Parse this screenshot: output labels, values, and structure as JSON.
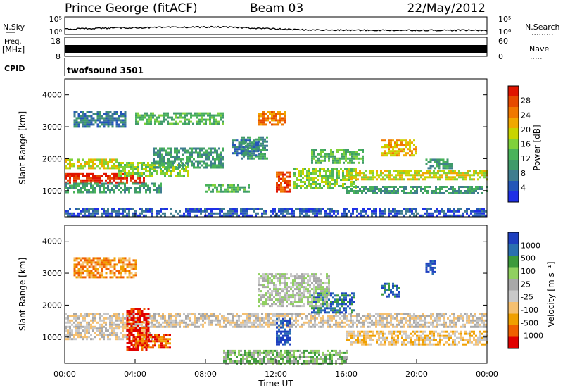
{
  "header": {
    "station": "Prince George (fitACF)",
    "beam": "Beam 03",
    "date": "22/May/2012"
  },
  "nsky_panel": {
    "left_label": "N.Sky",
    "right_label": "N.Search",
    "left_top_tick": "10^5",
    "left_bottom_tick": "10^0",
    "right_top_tick": "10^5",
    "right_bottom_tick": "10^0"
  },
  "freq_panel": {
    "left_label_1": "Freq.",
    "left_label_2": "[MHz]",
    "right_label": "Nave",
    "left_ticks": [
      "18",
      "8"
    ],
    "right_ticks": [
      "60",
      "0"
    ]
  },
  "cpid_panel": {
    "label": "CPID",
    "program": "twofsound 3501"
  },
  "colors": {
    "power": [
      "#1e2fe6",
      "#2456b8",
      "#3f7d8f",
      "#3f9a6a",
      "#49b35a",
      "#7fd13a",
      "#c8d400",
      "#f0a800",
      "#f07800",
      "#e64a00",
      "#e01400"
    ],
    "velocity": [
      "#e00000",
      "#f06000",
      "#f0a000",
      "#f5c070",
      "#c8c8c8",
      "#a8a8a8",
      "#90d060",
      "#3c9a3c",
      "#2a70b0",
      "#1e40c0"
    ]
  },
  "chart_data": [
    {
      "type": "heatmap",
      "name": "power",
      "ylabel": "Slant Range [km]",
      "ylim": [
        180,
        4500
      ],
      "yticks": [
        "1000",
        "2000",
        "3000",
        "4000"
      ],
      "xlim_hours": [
        0,
        24
      ],
      "colorbar_label": "Power [dB]",
      "colorbar_ticks": [
        "4",
        "8",
        "12",
        "16",
        "20",
        "24",
        "28"
      ],
      "bands": [
        {
          "x": [
            0.0,
            4.5
          ],
          "y": [
            1250,
            1550
          ],
          "level": 10
        },
        {
          "x": [
            0.0,
            3.0
          ],
          "y": [
            1700,
            2000
          ],
          "level": 6
        },
        {
          "x": [
            0.0,
            5.5
          ],
          "y": [
            950,
            1250
          ],
          "level": 3
        },
        {
          "x": [
            3.0,
            7.0
          ],
          "y": [
            1500,
            1900
          ],
          "level": 5
        },
        {
          "x": [
            5.0,
            9.0
          ],
          "y": [
            1750,
            2350
          ],
          "level": 3
        },
        {
          "x": [
            8.0,
            10.5
          ],
          "y": [
            1000,
            1200
          ],
          "level": 4
        },
        {
          "x": [
            10.0,
            11.5
          ],
          "y": [
            2000,
            2700
          ],
          "level": 3
        },
        {
          "x": [
            11.0,
            12.5
          ],
          "y": [
            3100,
            3500
          ],
          "level": 8
        },
        {
          "x": [
            12.0,
            12.8
          ],
          "y": [
            1000,
            1600
          ],
          "level": 9
        },
        {
          "x": [
            0.5,
            3.5
          ],
          "y": [
            3000,
            3500
          ],
          "level": 2
        },
        {
          "x": [
            4.0,
            9.0
          ],
          "y": [
            3100,
            3450
          ],
          "level": 4
        },
        {
          "x": [
            9.5,
            11.0
          ],
          "y": [
            2100,
            2600
          ],
          "level": 2
        },
        {
          "x": [
            13.0,
            16.5
          ],
          "y": [
            1100,
            1700
          ],
          "level": 5
        },
        {
          "x": [
            14.0,
            17.0
          ],
          "y": [
            1900,
            2300
          ],
          "level": 4
        },
        {
          "x": [
            16.0,
            24.0
          ],
          "y": [
            1350,
            1650
          ],
          "level": 6
        },
        {
          "x": [
            16.0,
            24.0
          ],
          "y": [
            900,
            1150
          ],
          "level": 3
        },
        {
          "x": [
            18.0,
            20.0
          ],
          "y": [
            2100,
            2600
          ],
          "level": 7
        },
        {
          "x": [
            20.5,
            22.0
          ],
          "y": [
            1700,
            2000
          ],
          "level": 3
        },
        {
          "x": [
            0.0,
            24.0
          ],
          "y": [
            200,
            450
          ],
          "level": 1
        }
      ]
    },
    {
      "type": "heatmap",
      "name": "velocity",
      "ylabel": "Slant Range [km]",
      "ylim": [
        180,
        4500
      ],
      "yticks": [
        "1000",
        "2000",
        "3000",
        "4000"
      ],
      "xlabel": "Time UT",
      "xticks": [
        "00:00",
        "04:00",
        "08:00",
        "12:00",
        "16:00",
        "20:00",
        "00:00"
      ],
      "xlim_hours": [
        0,
        24
      ],
      "colorbar_label": "Velocity [m s^-1]",
      "colorbar_ticks": [
        "1000",
        "500",
        "100",
        "25",
        "-25",
        "-100",
        "-500",
        "-1000"
      ],
      "bands": [
        {
          "x": [
            0.0,
            24.0
          ],
          "y": [
            1300,
            1750
          ],
          "level": 4
        },
        {
          "x": [
            0.0,
            5.0
          ],
          "y": [
            950,
            1300
          ],
          "level": 4
        },
        {
          "x": [
            3.5,
            4.8
          ],
          "y": [
            600,
            1900
          ],
          "level": 0
        },
        {
          "x": [
            4.0,
            6.0
          ],
          "y": [
            700,
            1100
          ],
          "level": 1
        },
        {
          "x": [
            0.5,
            4.0
          ],
          "y": [
            2900,
            3500
          ],
          "level": 2
        },
        {
          "x": [
            12.0,
            12.8
          ],
          "y": [
            800,
            1600
          ],
          "level": 9
        },
        {
          "x": [
            14.0,
            16.5
          ],
          "y": [
            1800,
            2400
          ],
          "level": 8
        },
        {
          "x": [
            18.0,
            19.0
          ],
          "y": [
            2300,
            2700
          ],
          "level": 8
        },
        {
          "x": [
            20.5,
            21.0
          ],
          "y": [
            3000,
            3400
          ],
          "level": 9
        },
        {
          "x": [
            11.0,
            15.0
          ],
          "y": [
            2000,
            3000
          ],
          "level": 5
        },
        {
          "x": [
            9.0,
            16.0
          ],
          "y": [
            200,
            600
          ],
          "level": 6
        },
        {
          "x": [
            16.0,
            24.0
          ],
          "y": [
            800,
            1200
          ],
          "level": 3
        }
      ]
    }
  ]
}
